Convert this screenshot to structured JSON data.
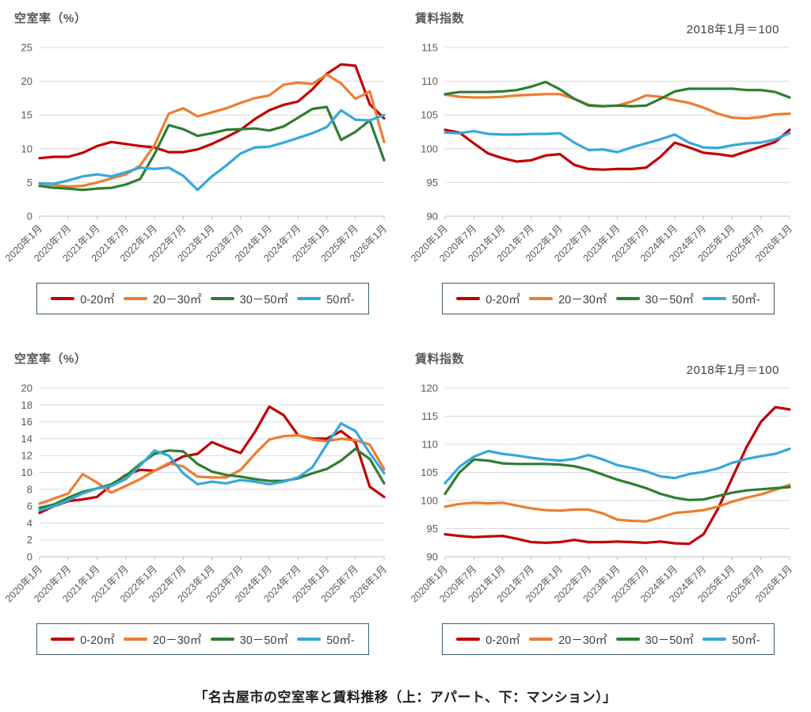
{
  "page": {
    "caption": "「名古屋市の空室率と賃料推移（上：アパート、下：マンション）」",
    "background": "#FFFFFF"
  },
  "colors": {
    "series_red": "#C00000",
    "series_orange": "#ED7D31",
    "series_green": "#2F7D33",
    "series_blue": "#35A8DC",
    "gridline": "#D9D9D9",
    "axis": "#BFBFBF",
    "tick_text": "#595959",
    "legend_border": "#3E5C70"
  },
  "legend": {
    "items": [
      {
        "label": "0-20㎡",
        "color": "#C00000"
      },
      {
        "label": "20－30㎡",
        "color": "#ED7D31"
      },
      {
        "label": "30－50㎡",
        "color": "#2F7D33"
      },
      {
        "label": "50㎡-",
        "color": "#35A8DC"
      }
    ]
  },
  "chart_data": [
    {
      "id": "apartment-vacancy-rate",
      "type": "line",
      "title": "空室率（%）",
      "note": "",
      "ylim": [
        0,
        25
      ],
      "ystep": 5,
      "grid": true,
      "legend_position": "bottom",
      "x_note": "values sampled quarterly, 2020年1月〜2026年1月 (2 points per axis label interval)",
      "categories": [
        "2020年1月",
        "2020年7月",
        "2021年1月",
        "2021年7月",
        "2022年1月",
        "2022年7月",
        "2023年1月",
        "2023年7月",
        "2024年1月",
        "2024年7月",
        "2025年1月",
        "2025年7月",
        "2026年1月"
      ],
      "series": [
        {
          "name": "0-20㎡",
          "color": "#C00000",
          "values": [
            8.6,
            8.8,
            8.8,
            9.4,
            10.4,
            11.0,
            10.7,
            10.4,
            10.2,
            9.5,
            9.5,
            9.9,
            10.7,
            11.7,
            12.8,
            14.4,
            15.7,
            16.5,
            17.0,
            18.8,
            21.1,
            22.5,
            22.3,
            16.6,
            14.5
          ]
        },
        {
          "name": "20－30㎡",
          "color": "#ED7D31",
          "values": [
            4.9,
            4.6,
            4.4,
            4.5,
            5.0,
            5.6,
            6.2,
            7.5,
            10.5,
            15.2,
            16.0,
            14.8,
            15.4,
            16.0,
            16.8,
            17.5,
            17.9,
            19.5,
            19.8,
            19.6,
            21.0,
            19.7,
            17.4,
            18.5,
            11.0
          ]
        },
        {
          "name": "30－50㎡",
          "color": "#2F7D33",
          "values": [
            4.5,
            4.2,
            4.1,
            3.9,
            4.1,
            4.2,
            4.7,
            5.5,
            9.2,
            13.5,
            12.9,
            11.9,
            12.3,
            12.8,
            12.9,
            13.0,
            12.7,
            13.3,
            14.6,
            15.9,
            16.2,
            11.3,
            12.5,
            14.2,
            8.3
          ]
        },
        {
          "name": "50㎡-",
          "color": "#35A8DC",
          "values": [
            4.9,
            4.8,
            5.3,
            5.9,
            6.2,
            5.9,
            6.5,
            7.2,
            7.0,
            7.2,
            6.0,
            3.9,
            5.9,
            7.5,
            9.3,
            10.2,
            10.3,
            10.9,
            11.6,
            12.3,
            13.2,
            15.7,
            14.3,
            14.2,
            15.0
          ]
        }
      ]
    },
    {
      "id": "apartment-rent-index",
      "type": "line",
      "title": "賃料指数",
      "note": "2018年1月＝100",
      "ylim": [
        90,
        115
      ],
      "ystep": 5,
      "grid": true,
      "legend_position": "bottom",
      "x_note": "values sampled quarterly, 2020年1月〜2026年1月 (2 points per axis label interval)",
      "categories": [
        "2020年1月",
        "2020年7月",
        "2021年1月",
        "2021年7月",
        "2022年1月",
        "2022年7月",
        "2023年1月",
        "2023年7月",
        "2024年1月",
        "2024年7月",
        "2025年1月",
        "2025年7月",
        "2026年1月"
      ],
      "series": [
        {
          "name": "0-20㎡",
          "color": "#C00000",
          "values": [
            102.8,
            102.4,
            100.8,
            99.3,
            98.6,
            98.1,
            98.3,
            99.0,
            99.2,
            97.6,
            97.0,
            96.9,
            97.0,
            97.0,
            97.2,
            98.8,
            100.9,
            100.2,
            99.4,
            99.2,
            98.9,
            99.6,
            100.3,
            101.0,
            102.8
          ]
        },
        {
          "name": "20－30㎡",
          "color": "#ED7D31",
          "values": [
            108.0,
            107.7,
            107.6,
            107.6,
            107.7,
            107.9,
            108.0,
            108.1,
            108.1,
            107.4,
            106.5,
            106.3,
            106.4,
            107.0,
            107.9,
            107.7,
            107.2,
            106.8,
            106.1,
            105.2,
            104.6,
            104.5,
            104.7,
            105.1,
            105.2
          ]
        },
        {
          "name": "30－50㎡",
          "color": "#2F7D33",
          "values": [
            108.1,
            108.4,
            108.4,
            108.4,
            108.5,
            108.7,
            109.2,
            109.9,
            108.8,
            107.4,
            106.4,
            106.3,
            106.4,
            106.3,
            106.4,
            107.4,
            108.5,
            108.9,
            108.9,
            108.9,
            108.9,
            108.7,
            108.7,
            108.4,
            107.6
          ]
        },
        {
          "name": "50㎡-",
          "color": "#35A8DC",
          "values": [
            102.4,
            102.3,
            102.6,
            102.2,
            102.1,
            102.1,
            102.2,
            102.2,
            102.3,
            100.9,
            99.8,
            99.9,
            99.5,
            100.2,
            100.8,
            101.4,
            102.1,
            100.9,
            100.2,
            100.1,
            100.5,
            100.8,
            100.9,
            101.4,
            102.3
          ]
        }
      ]
    },
    {
      "id": "mansion-vacancy-rate",
      "type": "line",
      "title": "空室率（%）",
      "note": "",
      "ylim": [
        0,
        20
      ],
      "ystep": 2,
      "grid": true,
      "legend_position": "bottom",
      "x_note": "values sampled quarterly, 2020年1月〜2026年1月 (2 points per axis label interval)",
      "categories": [
        "2020年1月",
        "2020年7月",
        "2021年1月",
        "2021年7月",
        "2022年1月",
        "2022年7月",
        "2023年1月",
        "2023年7月",
        "2024年1月",
        "2024年7月",
        "2025年1月",
        "2025年7月",
        "2026年1月"
      ],
      "series": [
        {
          "name": "0-20㎡",
          "color": "#C00000",
          "values": [
            5.2,
            6.0,
            6.6,
            6.8,
            7.1,
            8.5,
            9.7,
            10.3,
            10.2,
            11.0,
            11.9,
            12.2,
            13.6,
            12.9,
            12.3,
            14.8,
            17.8,
            16.8,
            14.4,
            14.0,
            14.0,
            14.9,
            13.6,
            8.3,
            7.1
          ]
        },
        {
          "name": "20－30㎡",
          "color": "#ED7D31",
          "values": [
            6.3,
            6.9,
            7.5,
            9.8,
            8.8,
            7.6,
            8.4,
            9.2,
            10.2,
            11.1,
            10.7,
            9.5,
            9.4,
            9.4,
            10.3,
            12.2,
            13.9,
            14.3,
            14.4,
            13.9,
            13.7,
            14.0,
            13.8,
            13.3,
            10.4
          ]
        },
        {
          "name": "30－50㎡",
          "color": "#2F7D33",
          "values": [
            5.8,
            6.2,
            7.0,
            7.7,
            8.1,
            8.6,
            9.6,
            11.0,
            12.2,
            12.6,
            12.5,
            11.0,
            10.1,
            9.7,
            9.5,
            9.2,
            9.0,
            9.0,
            9.3,
            9.9,
            10.4,
            11.4,
            12.8,
            11.6,
            8.7
          ]
        },
        {
          "name": "50㎡-",
          "color": "#35A8DC",
          "values": [
            5.5,
            6.0,
            6.7,
            7.5,
            8.1,
            8.4,
            9.2,
            10.8,
            12.6,
            12.0,
            9.9,
            8.6,
            8.9,
            8.7,
            9.1,
            8.9,
            8.6,
            8.9,
            9.4,
            10.6,
            13.3,
            15.8,
            14.9,
            12.3,
            9.9
          ]
        }
      ]
    },
    {
      "id": "mansion-rent-index",
      "type": "line",
      "title": "賃料指数",
      "note": "2018年1月＝100",
      "ylim": [
        90,
        120
      ],
      "ystep": 5,
      "grid": true,
      "legend_position": "bottom",
      "x_note": "values sampled quarterly, 2020年1月〜2026年1月 (2 points per axis label interval)",
      "categories": [
        "2020年1月",
        "2020年7月",
        "2021年1月",
        "2021年7月",
        "2022年1月",
        "2022年7月",
        "2023年1月",
        "2023年7月",
        "2024年1月",
        "2024年7月",
        "2025年1月",
        "2025年7月",
        "2026年1月"
      ],
      "series": [
        {
          "name": "0-20㎡",
          "color": "#C00000",
          "values": [
            94.0,
            93.7,
            93.5,
            93.6,
            93.7,
            93.2,
            92.6,
            92.5,
            92.6,
            93.0,
            92.6,
            92.6,
            92.7,
            92.6,
            92.5,
            92.7,
            92.4,
            92.3,
            94.0,
            98.5,
            104.0,
            109.5,
            114.0,
            116.6,
            116.2
          ]
        },
        {
          "name": "20－30㎡",
          "color": "#ED7D31",
          "values": [
            98.9,
            99.4,
            99.6,
            99.5,
            99.6,
            99.1,
            98.6,
            98.3,
            98.2,
            98.4,
            98.4,
            97.7,
            96.6,
            96.4,
            96.3,
            97.0,
            97.8,
            98.0,
            98.3,
            98.9,
            99.8,
            100.5,
            101.1,
            101.9,
            102.8
          ]
        },
        {
          "name": "30－50㎡",
          "color": "#2F7D33",
          "values": [
            101.2,
            105.0,
            107.3,
            107.1,
            106.6,
            106.5,
            106.5,
            106.5,
            106.4,
            106.1,
            105.5,
            104.6,
            103.7,
            103.0,
            102.2,
            101.2,
            100.5,
            100.1,
            100.2,
            100.8,
            101.4,
            101.8,
            102.0,
            102.2,
            102.4
          ]
        },
        {
          "name": "50㎡-",
          "color": "#35A8DC",
          "values": [
            103.1,
            106.0,
            107.8,
            108.8,
            108.3,
            108.0,
            107.6,
            107.3,
            107.1,
            107.4,
            108.1,
            107.3,
            106.3,
            105.8,
            105.2,
            104.3,
            104.0,
            104.7,
            105.1,
            105.7,
            106.7,
            107.4,
            107.9,
            108.3,
            109.2
          ]
        }
      ]
    }
  ]
}
